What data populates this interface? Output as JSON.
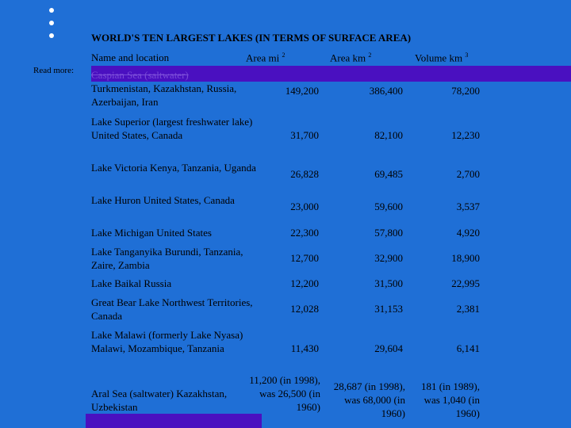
{
  "title": "WORLD'S TEN LARGEST LAKES (IN TERMS OF SURFACE AREA)",
  "headers": {
    "name": "Name and location",
    "area_mi": "Area mi",
    "area_mi_sup": "2",
    "area_km": "Area km",
    "area_km_sup": "2",
    "volume": "Volume km",
    "volume_sup": "3"
  },
  "read_more": "Read more:",
  "rows": [
    {
      "name_strike": "Caspian Sea (saltwater)",
      "name": "Turkmenistan, Kazakhstan, Russia, Azerbaijan, Iran",
      "area_mi": "149,200",
      "area_km": "386,400",
      "volume": "78,200"
    },
    {
      "name": "Lake Superior (largest freshwater lake) United States, Canada",
      "area_mi": "31,700",
      "area_km": "82,100",
      "volume": "12,230"
    },
    {
      "name": "Lake Victoria Kenya, Tanzania, Uganda",
      "area_mi": "26,828",
      "area_km": "69,485",
      "volume": "2,700"
    },
    {
      "name": "Lake Huron United States, Canada",
      "area_mi": "23,000",
      "area_km": "59,600",
      "volume": "3,537"
    },
    {
      "name": "Lake Michigan United States",
      "area_mi": "22,300",
      "area_km": "57,800",
      "volume": "4,920"
    },
    {
      "name": "Lake Tanganyika Burundi, Tanzania, Zaire, Zambia",
      "area_mi": "12,700",
      "area_km": "32,900",
      "volume": "18,900"
    },
    {
      "name": "Lake Baikal Russia",
      "area_mi": "12,200",
      "area_km": "31,500",
      "volume": "22,995"
    },
    {
      "name": "Great Bear Lake Northwest Territories, Canada",
      "area_mi": "12,028",
      "area_km": "31,153",
      "volume": "2,381"
    },
    {
      "name": "Lake Malawi (formerly Lake Nyasa) Malawi, Mozambique, Tanzania",
      "area_mi": "11,430",
      "area_km": "29,604",
      "volume": "6,141"
    },
    {
      "name": "Aral Sea (saltwater) Kazakhstan, Uzbekistan",
      "area_mi": "11,200 (in 1998), was 26,500 (in 1960)",
      "area_km": "28,687 (in 1998), was 68,000 (in 1960)",
      "volume": "181 (in 1989), was 1,040 (in 1960)"
    }
  ]
}
